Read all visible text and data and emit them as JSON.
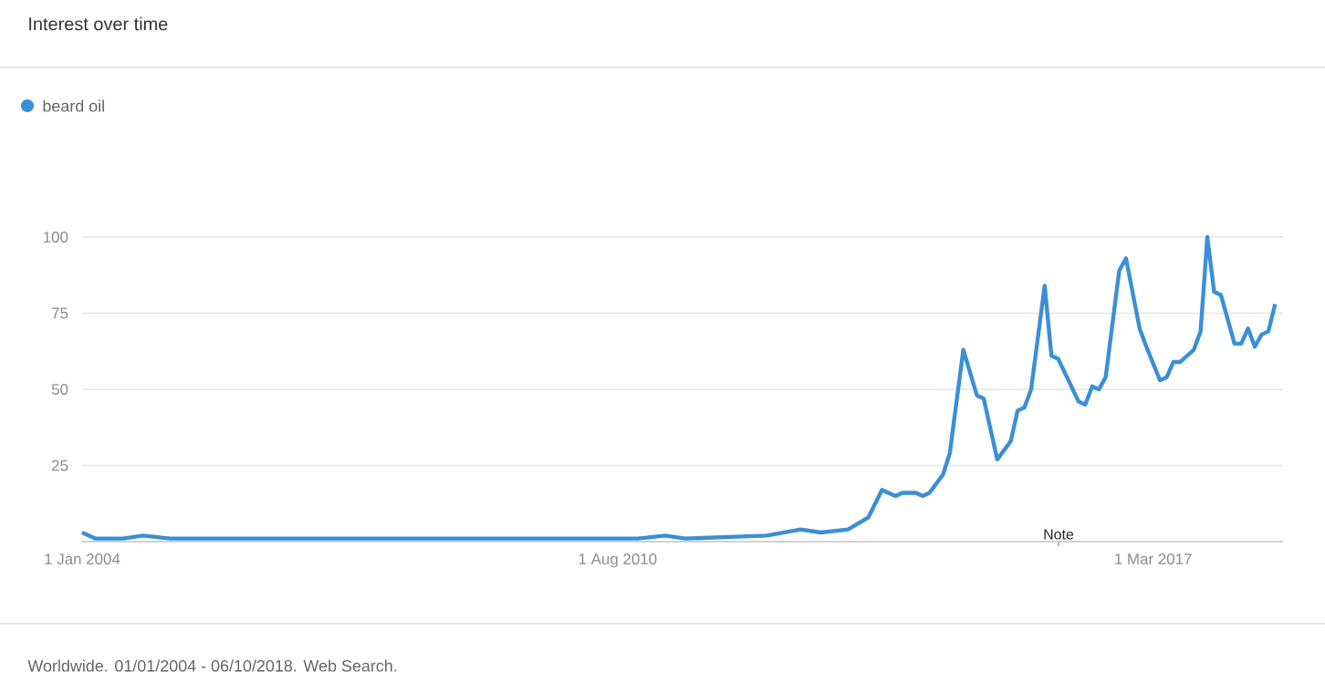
{
  "chart_data": {
    "type": "line",
    "title": "Interest over time",
    "annotations": [
      "Note",
      "Worldwide. 01/01/2004 - 06/10/2018. Web Search."
    ],
    "x": [
      "2004-01",
      "2004-03",
      "2004-07",
      "2004-10",
      "2005-02",
      "2006-01",
      "2007-01",
      "2008-01",
      "2009-01",
      "2010-01",
      "2010-11",
      "2011-03",
      "2011-06",
      "2012-06",
      "2012-11",
      "2013-02",
      "2013-06",
      "2013-09",
      "2013-11",
      "2014-01",
      "2014-02",
      "2014-04",
      "2014-05",
      "2014-06",
      "2014-08",
      "2014-09",
      "2014-11",
      "2015-01",
      "2015-02",
      "2015-04",
      "2015-06",
      "2015-07",
      "2015-08",
      "2015-09",
      "2015-11",
      "2015-12",
      "2016-01",
      "2016-04",
      "2016-05",
      "2016-06",
      "2016-07",
      "2016-08",
      "2016-10",
      "2016-11",
      "2017-01",
      "2017-02",
      "2017-04",
      "2017-05",
      "2017-06",
      "2017-07",
      "2017-09",
      "2017-10",
      "2017-11",
      "2017-12",
      "2018-01",
      "2018-03",
      "2018-04",
      "2018-05",
      "2018-06",
      "2018-07",
      "2018-08",
      "2018-09"
    ],
    "series": [
      {
        "name": "beard oil",
        "color": "#3a8fd6",
        "values": [
          3,
          1,
          1,
          2,
          1,
          1,
          1,
          1,
          1,
          1,
          1,
          2,
          1,
          2,
          4,
          3,
          4,
          8,
          17,
          15,
          16,
          16,
          15,
          16,
          22,
          29,
          63,
          48,
          47,
          27,
          33,
          43,
          44,
          50,
          84,
          61,
          60,
          46,
          45,
          51,
          50,
          54,
          89,
          93,
          70,
          64,
          53,
          54,
          59,
          59,
          63,
          69,
          100,
          82,
          81,
          65,
          65,
          70,
          64,
          68,
          69,
          78
        ]
      }
    ],
    "xlim": [
      "2004-01-01",
      "2018-10-06"
    ],
    "xticks": [
      {
        "value": "2004-01-01",
        "label": "1 Jan 2004"
      },
      {
        "value": "2010-08-01",
        "label": "1 Aug 2010"
      },
      {
        "value": "2017-03-01",
        "label": "1 Mar 2017"
      }
    ],
    "ylim": [
      0,
      100
    ],
    "yticks": [
      25,
      50,
      75,
      100
    ],
    "grid": "y",
    "legend": "top left",
    "marker": "none",
    "line_style": "solid"
  }
}
